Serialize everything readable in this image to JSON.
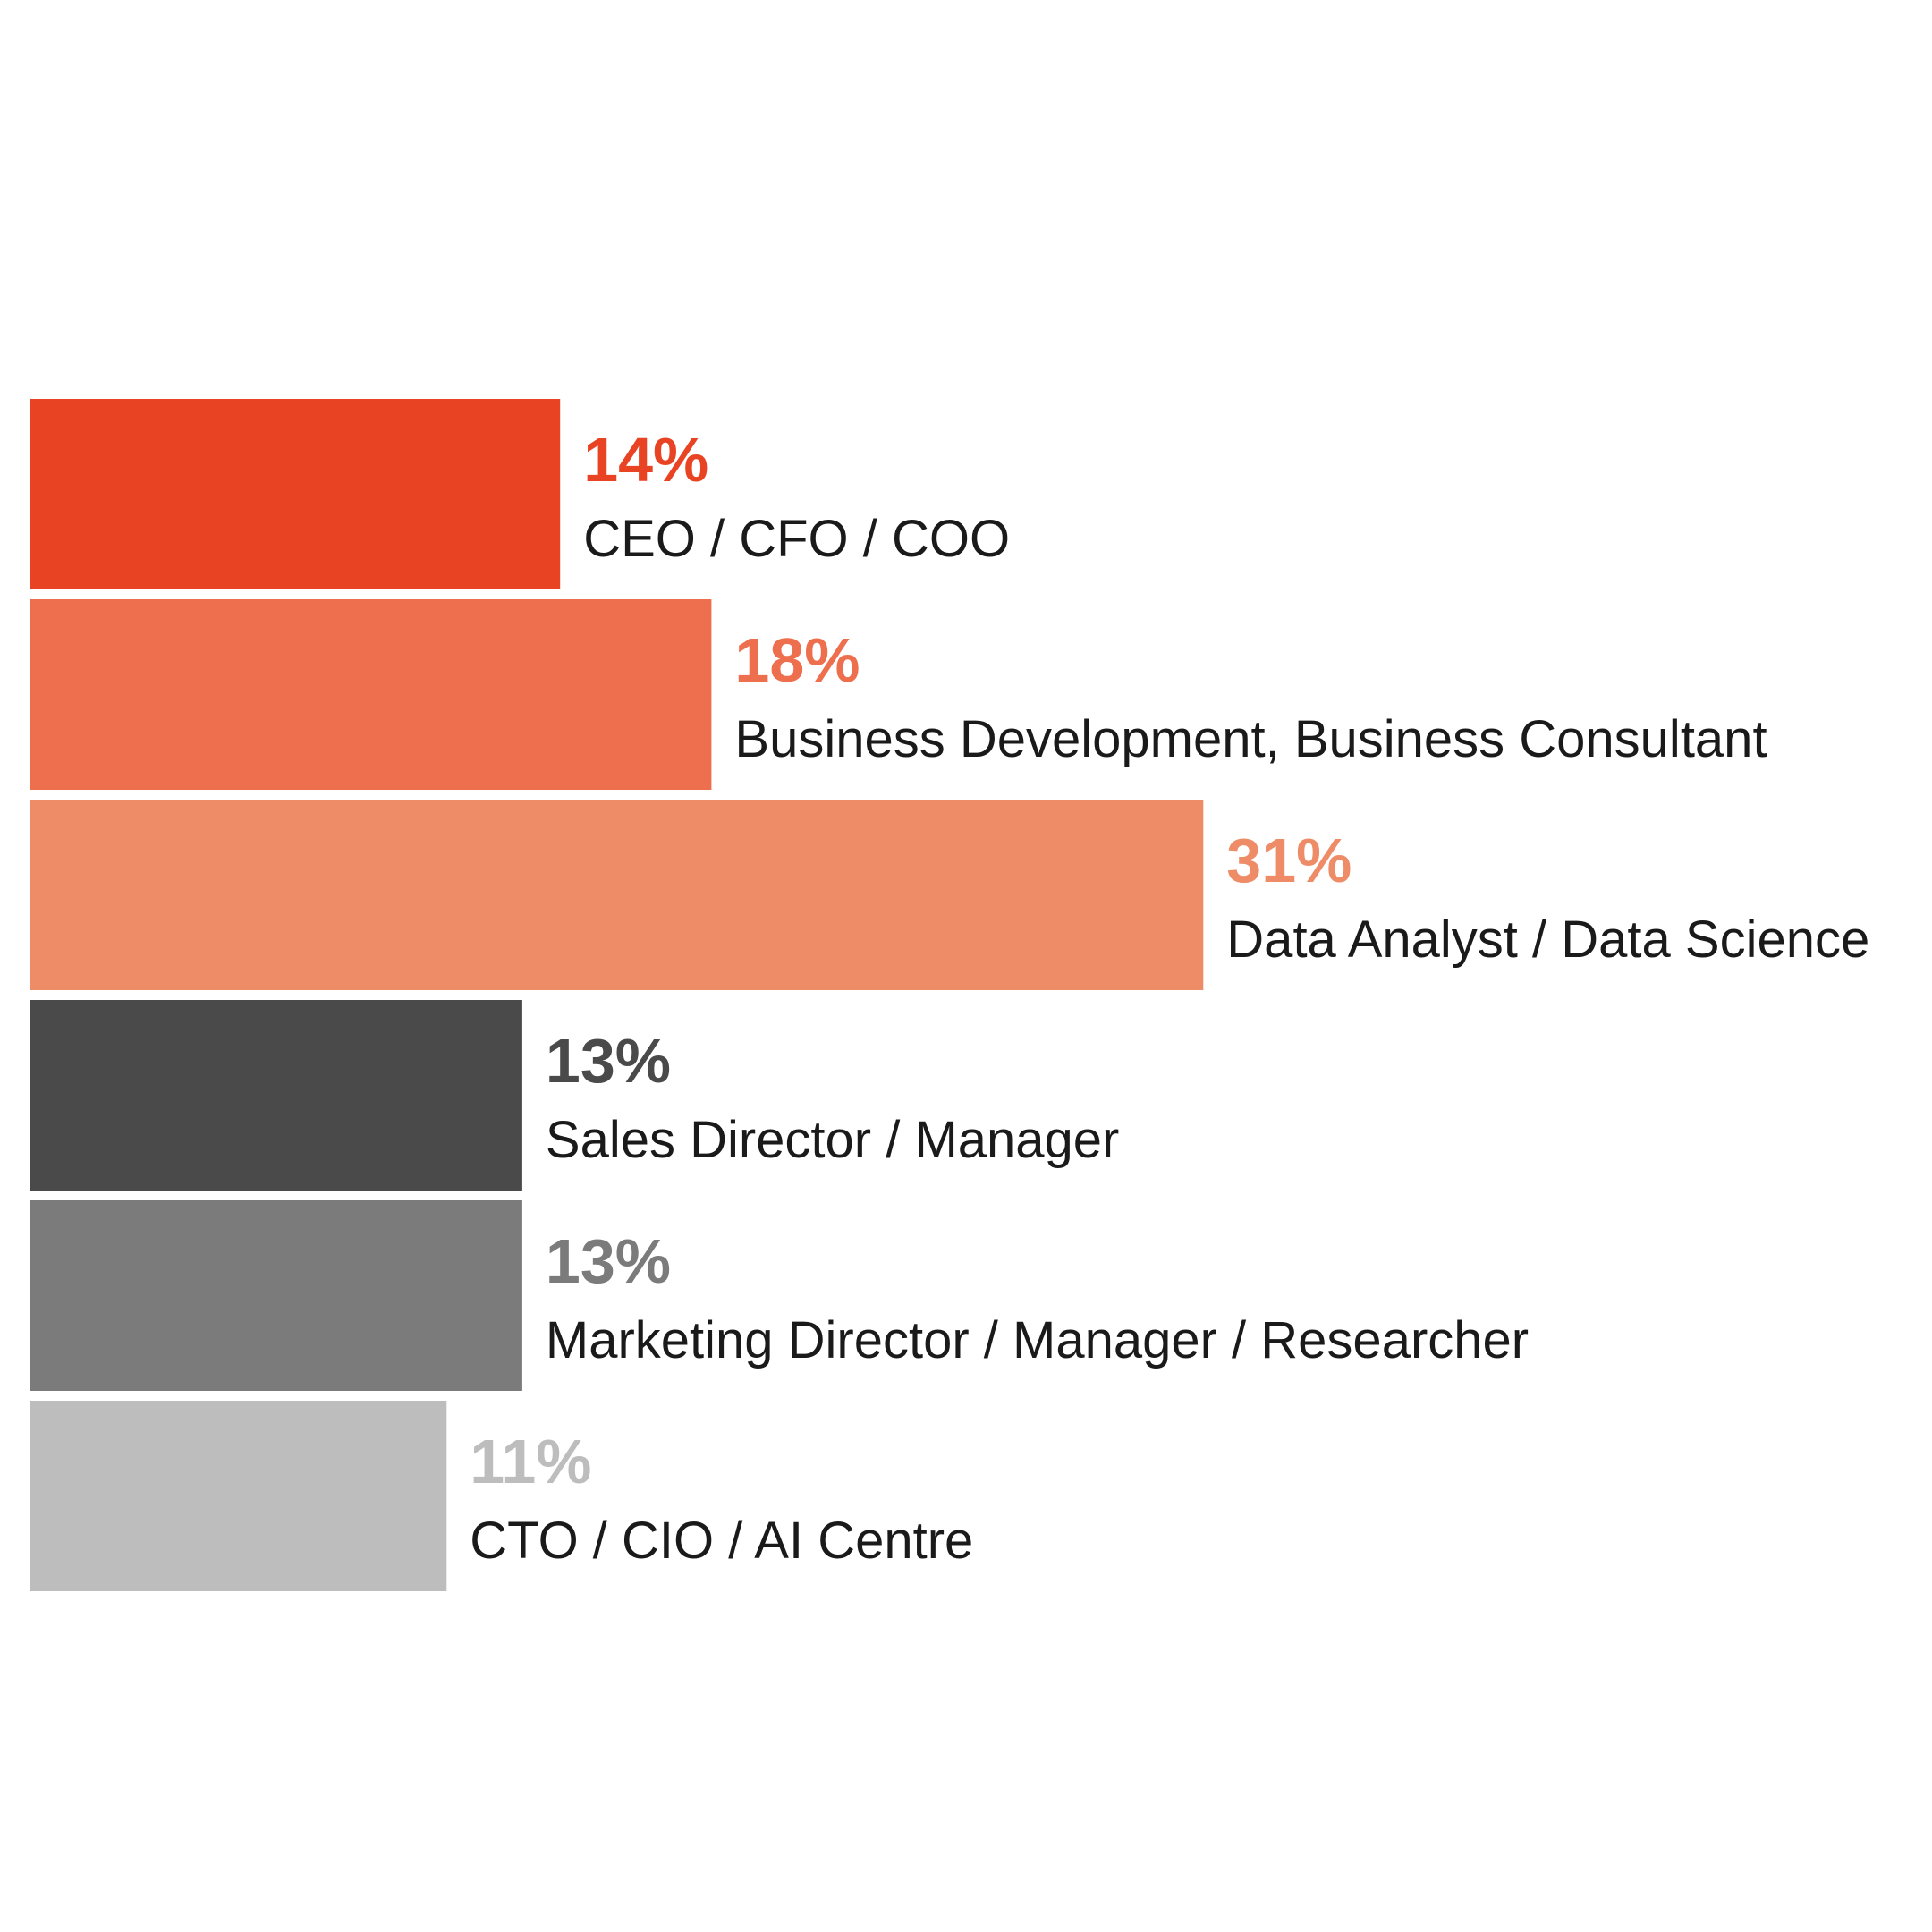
{
  "chart_data": {
    "type": "bar",
    "orientation": "horizontal",
    "categories": [
      "CEO / CFO / COO",
      "Business Development, Business Consultant",
      "Data Analyst / Data Science",
      "Sales Director / Manager",
      "Marketing Director / Manager / Researcher",
      "CTO / CIO / AI Centre"
    ],
    "values": [
      14,
      18,
      31,
      13,
      13,
      11
    ],
    "value_labels": [
      "14%",
      "18%",
      "31%",
      "13%",
      "13%",
      "11%"
    ],
    "unit": "%",
    "colors": [
      "#e84424",
      "#ee6f4e",
      "#ee8c68",
      "#4a4a4a",
      "#7b7b7b",
      "#bdbdbd"
    ],
    "title": "",
    "xlabel": "",
    "ylabel": "",
    "grid": false,
    "legend": "none"
  }
}
